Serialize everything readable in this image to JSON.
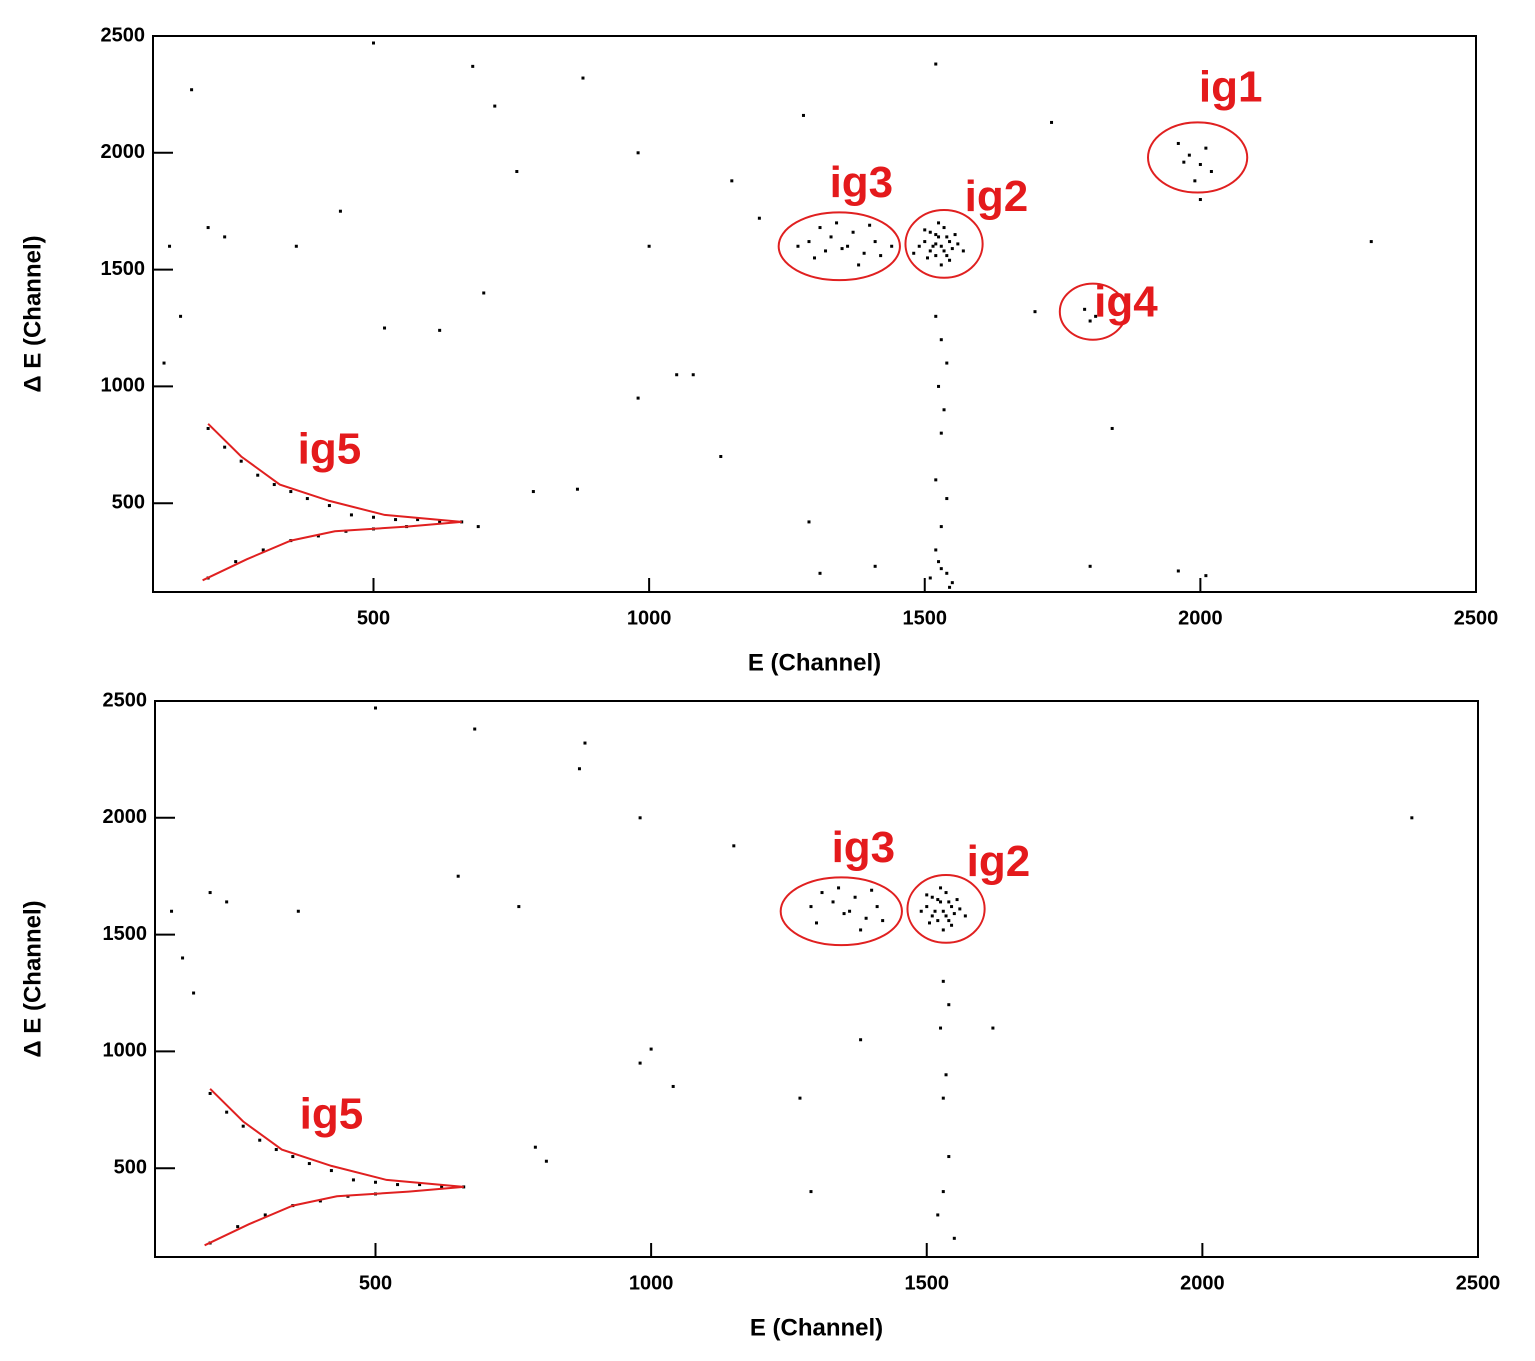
{
  "chart_data": [
    {
      "type": "scatter",
      "x_label": "E (Channel)",
      "y_label": "Δ E (Channel)",
      "color": "#000000",
      "gate_color": "#e02020",
      "xlim": [
        100,
        2500
      ],
      "ylim": [
        120,
        2500
      ],
      "xticks": [
        500,
        1000,
        1500,
        2000,
        2500
      ],
      "yticks": [
        500,
        1000,
        1500,
        2000,
        2500
      ],
      "annotations": [
        "ig1",
        "ig2",
        "ig3",
        "ig4",
        "ig5"
      ],
      "x": [
        1500,
        1510,
        1520,
        1530,
        1540,
        1525,
        1545,
        1515,
        1535,
        1505,
        1550,
        1520,
        1540,
        1530,
        1560,
        1490,
        1525,
        1545,
        1510,
        1555,
        1535,
        1500,
        1570,
        1480,
        1520,
        1520,
        1530,
        1540,
        1525,
        1535,
        1530,
        1520,
        1540,
        1530,
        1520,
        1525,
        1540,
        1510,
        1550,
        1530,
        1545,
        1290,
        1310,
        1330,
        1350,
        1370,
        1390,
        1410,
        1300,
        1340,
        1380,
        1420,
        1360,
        1320,
        1400,
        1440,
        1270,
        1960,
        1980,
        2000,
        2010,
        1990,
        2020,
        1970,
        2000,
        1790,
        1810,
        1820,
        1800,
        200,
        230,
        260,
        290,
        320,
        350,
        380,
        420,
        460,
        500,
        540,
        580,
        620,
        660,
        690,
        200,
        250,
        300,
        350,
        400,
        450,
        500,
        560,
        500,
        680,
        880,
        1280,
        1520,
        1730,
        980,
        1150,
        200,
        230,
        360,
        760,
        1000,
        1200,
        520,
        620,
        980,
        1080,
        1130,
        790,
        870,
        1290,
        1310,
        1410,
        1800,
        1960,
        2010,
        2310,
        130,
        150,
        120,
        1840,
        1700,
        440,
        720,
        170,
        1050,
        700
      ],
      "values": [
        1620,
        1580,
        1650,
        1600,
        1560,
        1640,
        1620,
        1600,
        1680,
        1550,
        1590,
        1560,
        1640,
        1520,
        1610,
        1600,
        1700,
        1540,
        1660,
        1650,
        1580,
        1670,
        1580,
        1570,
        1610,
        1300,
        1200,
        1100,
        1000,
        900,
        800,
        600,
        520,
        400,
        300,
        250,
        200,
        180,
        160,
        220,
        140,
        1620,
        1680,
        1640,
        1590,
        1660,
        1570,
        1620,
        1550,
        1700,
        1520,
        1560,
        1600,
        1580,
        1690,
        1600,
        1600,
        2040,
        1990,
        1950,
        2020,
        1880,
        1920,
        1960,
        1800,
        1330,
        1300,
        1370,
        1280,
        820,
        740,
        680,
        620,
        580,
        550,
        520,
        490,
        450,
        440,
        430,
        430,
        420,
        420,
        400,
        180,
        250,
        300,
        340,
        360,
        380,
        390,
        400,
        2470,
        2370,
        2320,
        2160,
        2380,
        2130,
        2000,
        1880,
        1680,
        1640,
        1600,
        1920,
        1600,
        1720,
        1250,
        1240,
        950,
        1050,
        700,
        550,
        560,
        420,
        200,
        230,
        230,
        210,
        190,
        1620,
        1600,
        1300,
        1100,
        820,
        1320,
        1750,
        2200,
        2270,
        1050,
        1400
      ]
    },
    {
      "type": "scatter",
      "x_label": "E (Channel)",
      "y_label": "Δ E (Channel)",
      "color": "#000000",
      "gate_color": "#e02020",
      "xlim": [
        100,
        2500
      ],
      "ylim": [
        120,
        2500
      ],
      "xticks": [
        500,
        1000,
        1500,
        2000,
        2500
      ],
      "yticks": [
        500,
        1000,
        1500,
        2000,
        2500
      ],
      "annotations": [
        "ig2",
        "ig3",
        "ig5"
      ],
      "x": [
        1500,
        1510,
        1520,
        1530,
        1540,
        1525,
        1545,
        1515,
        1535,
        1505,
        1550,
        1520,
        1540,
        1530,
        1560,
        1490,
        1525,
        1545,
        1510,
        1555,
        1535,
        1500,
        1570,
        1530,
        1540,
        1525,
        1535,
        1530,
        1540,
        1530,
        1520,
        1550,
        1290,
        1310,
        1330,
        1350,
        1370,
        1390,
        1410,
        1300,
        1340,
        1380,
        1420,
        1360,
        1400,
        200,
        230,
        260,
        290,
        320,
        350,
        380,
        420,
        460,
        500,
        540,
        580,
        620,
        660,
        200,
        250,
        300,
        350,
        400,
        450,
        500,
        500,
        680,
        880,
        870,
        980,
        1150,
        200,
        230,
        360,
        760,
        1000,
        650,
        1040,
        980,
        1270,
        790,
        810,
        1290,
        1380,
        1620,
        2380,
        130,
        150,
        170
      ],
      "values": [
        1620,
        1580,
        1650,
        1600,
        1560,
        1640,
        1620,
        1600,
        1680,
        1550,
        1590,
        1560,
        1640,
        1520,
        1610,
        1600,
        1700,
        1540,
        1660,
        1650,
        1580,
        1670,
        1580,
        1300,
        1200,
        1100,
        900,
        800,
        550,
        400,
        300,
        200,
        1620,
        1680,
        1640,
        1590,
        1660,
        1570,
        1620,
        1550,
        1700,
        1520,
        1560,
        1600,
        1690,
        820,
        740,
        680,
        620,
        580,
        550,
        520,
        490,
        450,
        440,
        430,
        430,
        420,
        420,
        180,
        250,
        300,
        340,
        360,
        380,
        390,
        2470,
        2380,
        2320,
        2210,
        2000,
        1880,
        1680,
        1640,
        1600,
        1620,
        1010,
        1750,
        850,
        950,
        800,
        590,
        530,
        400,
        1050,
        1100,
        2000,
        1600,
        1400,
        1250
      ]
    }
  ]
}
